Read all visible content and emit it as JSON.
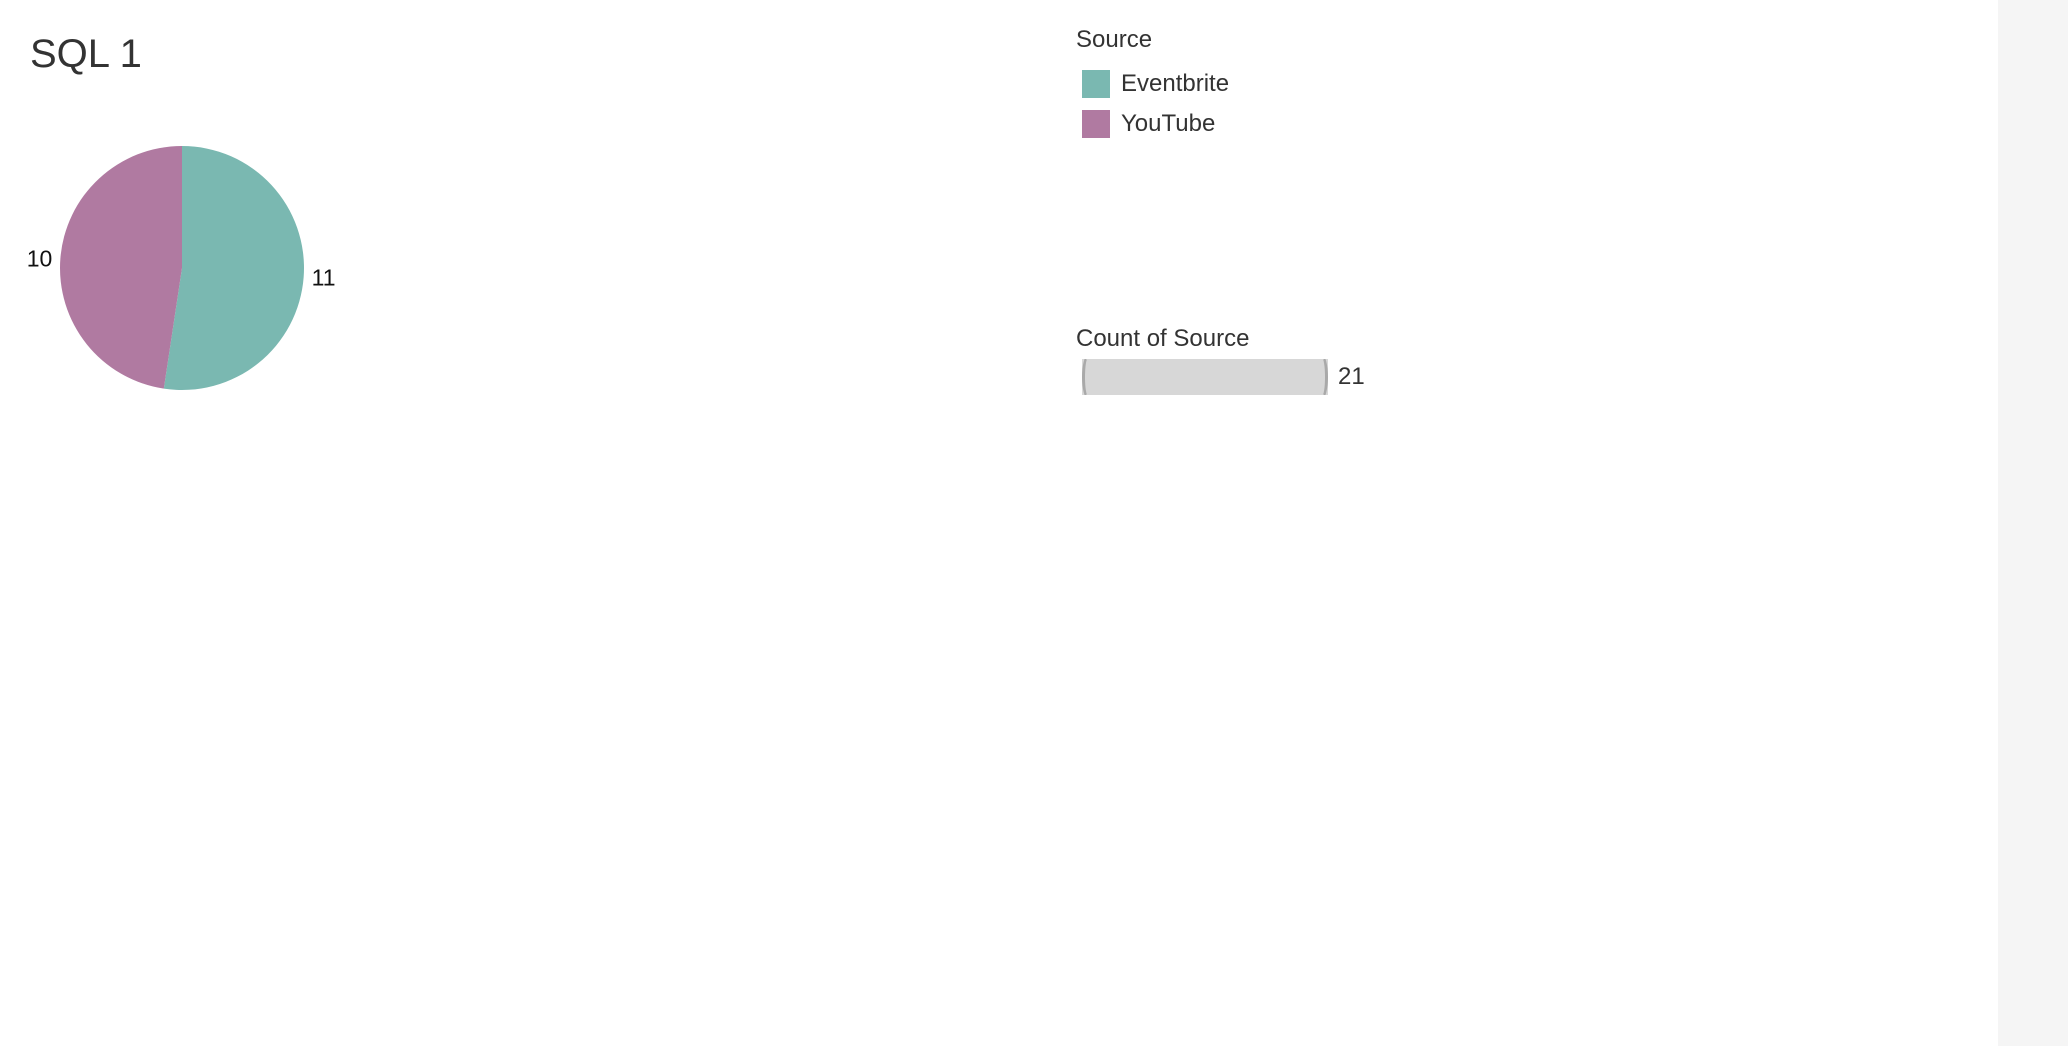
{
  "sheet": {
    "title": "SQL 1"
  },
  "colors": {
    "eventbrite": "#7ab8b1",
    "youtube": "#b07aa1",
    "size_bar": "#d7d7d7"
  },
  "legend": {
    "title": "Source",
    "items": [
      {
        "label": "Eventbrite",
        "color": "#7ab8b1"
      },
      {
        "label": "YouTube",
        "color": "#b07aa1"
      }
    ]
  },
  "size_legend": {
    "title": "Count of Source",
    "value": "21"
  },
  "chart_data": {
    "type": "pie",
    "title": "SQL 1",
    "categories": [
      "Eventbrite",
      "YouTube"
    ],
    "values": [
      11,
      10
    ],
    "labels": [
      "11",
      "10"
    ],
    "colors": [
      "#7ab8b1",
      "#b07aa1"
    ],
    "legend": "right",
    "grid": false
  }
}
